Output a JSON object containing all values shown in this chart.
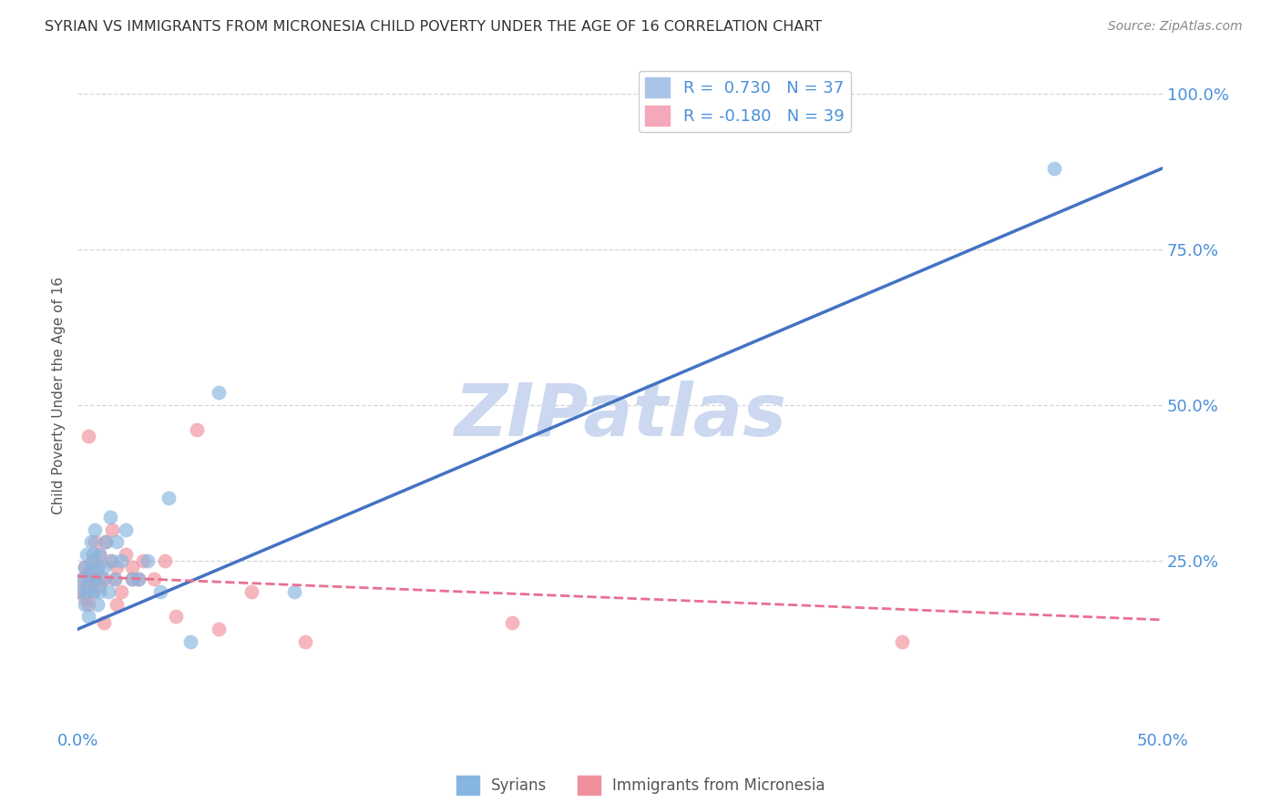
{
  "title": "SYRIAN VS IMMIGRANTS FROM MICRONESIA CHILD POVERTY UNDER THE AGE OF 16 CORRELATION CHART",
  "source": "Source: ZipAtlas.com",
  "ylabel": "Child Poverty Under the Age of 16",
  "xlim": [
    0.0,
    0.5
  ],
  "ylim": [
    -0.02,
    1.05
  ],
  "xticks": [
    0.0,
    0.1,
    0.2,
    0.3,
    0.4,
    0.5
  ],
  "xtick_labels_show": [
    "0.0%",
    "",
    "",
    "",
    "",
    "50.0%"
  ],
  "yticks_left": [
    0.0,
    0.25,
    0.5,
    0.75,
    1.0
  ],
  "ytick_labels_left": [
    "",
    "",
    "",
    "",
    ""
  ],
  "yticks_right": [
    0.25,
    0.5,
    0.75,
    1.0
  ],
  "ytick_labels_right": [
    "25.0%",
    "50.0%",
    "75.0%",
    "100.0%"
  ],
  "legend_entries": [
    {
      "label": "R =  0.730   N = 37",
      "color": "#aac4e8"
    },
    {
      "label": "R = -0.180   N = 39",
      "color": "#f5a8ba"
    }
  ],
  "syrians_color": "#85b5e0",
  "micronesia_color": "#f0909c",
  "blue_line_color": "#4472c4",
  "pink_line_color": "#e87090",
  "watermark": "ZIPatlas",
  "watermark_color": "#ccd8f0",
  "background_color": "#ffffff",
  "grid_color": "#cccccc",
  "title_color": "#333333",
  "axis_label_color": "#555555",
  "tick_label_color": "#4a90d9",
  "syrians_x": [
    0.001,
    0.002,
    0.003,
    0.003,
    0.004,
    0.004,
    0.005,
    0.005,
    0.006,
    0.006,
    0.007,
    0.007,
    0.008,
    0.008,
    0.009,
    0.009,
    0.01,
    0.01,
    0.011,
    0.012,
    0.013,
    0.014,
    0.015,
    0.016,
    0.017,
    0.018,
    0.02,
    0.022,
    0.025,
    0.028,
    0.032,
    0.038,
    0.042,
    0.052,
    0.065,
    0.45,
    0.1
  ],
  "syrians_y": [
    0.2,
    0.22,
    0.18,
    0.24,
    0.26,
    0.2,
    0.22,
    0.16,
    0.24,
    0.28,
    0.2,
    0.26,
    0.22,
    0.3,
    0.18,
    0.24,
    0.26,
    0.2,
    0.22,
    0.24,
    0.28,
    0.2,
    0.32,
    0.25,
    0.22,
    0.28,
    0.25,
    0.3,
    0.22,
    0.22,
    0.25,
    0.2,
    0.35,
    0.12,
    0.52,
    0.88,
    0.2
  ],
  "micronesia_x": [
    0.001,
    0.002,
    0.003,
    0.003,
    0.004,
    0.005,
    0.005,
    0.006,
    0.007,
    0.007,
    0.008,
    0.008,
    0.009,
    0.01,
    0.01,
    0.012,
    0.013,
    0.015,
    0.016,
    0.017,
    0.018,
    0.02,
    0.022,
    0.025,
    0.028,
    0.03,
    0.035,
    0.04,
    0.045,
    0.055,
    0.065,
    0.08,
    0.105,
    0.2,
    0.38,
    0.005,
    0.012,
    0.018,
    0.025
  ],
  "micronesia_y": [
    0.2,
    0.22,
    0.19,
    0.24,
    0.21,
    0.23,
    0.18,
    0.22,
    0.25,
    0.2,
    0.28,
    0.22,
    0.24,
    0.21,
    0.26,
    0.22,
    0.28,
    0.25,
    0.3,
    0.22,
    0.24,
    0.2,
    0.26,
    0.24,
    0.22,
    0.25,
    0.22,
    0.25,
    0.16,
    0.46,
    0.14,
    0.2,
    0.12,
    0.15,
    0.12,
    0.45,
    0.15,
    0.18,
    0.22
  ],
  "blue_line_x": [
    0.0,
    0.5
  ],
  "blue_line_y": [
    0.14,
    0.88
  ],
  "pink_line_x": [
    0.0,
    0.5
  ],
  "pink_line_y": [
    0.225,
    0.155
  ],
  "pink_line_dash": true,
  "bottom_legend": [
    {
      "label": "Syrians",
      "color": "#85b5e0"
    },
    {
      "label": "Immigrants from Micronesia",
      "color": "#f0909c"
    }
  ]
}
